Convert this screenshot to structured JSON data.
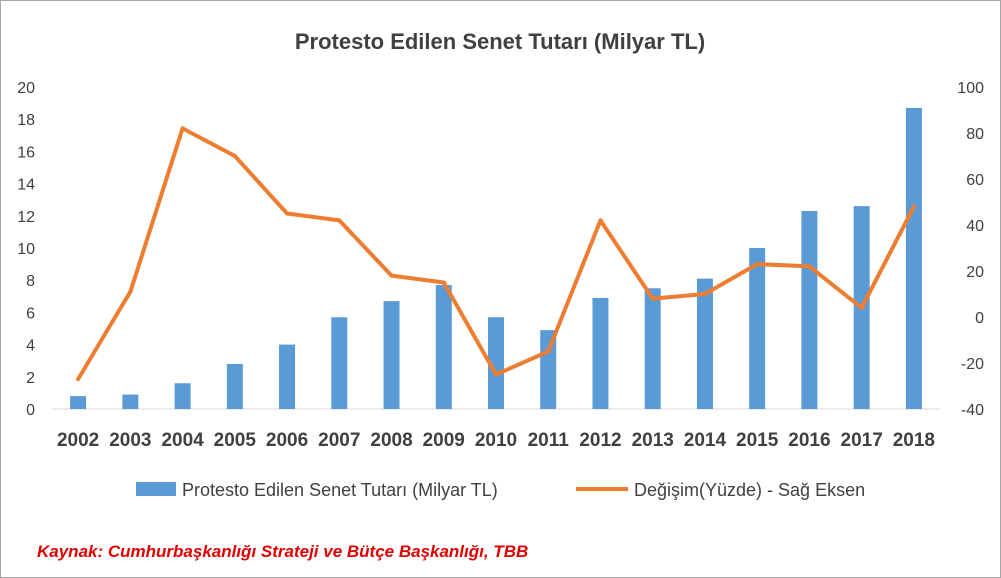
{
  "chart_data": {
    "type": "bar",
    "title": "Protesto Edilen Senet Tutarı (Milyar TL)",
    "categories": [
      "2002",
      "2003",
      "2004",
      "2005",
      "2006",
      "2007",
      "2008",
      "2009",
      "2010",
      "2011",
      "2012",
      "2013",
      "2014",
      "2015",
      "2016",
      "2017",
      "2018"
    ],
    "series": [
      {
        "name": "Protesto Edilen Senet Tutarı (Milyar TL)",
        "type": "bar",
        "axis": "left",
        "color": "#5b9bd5",
        "values": [
          0.8,
          0.9,
          1.6,
          2.8,
          4.0,
          5.7,
          6.7,
          7.7,
          5.7,
          4.9,
          6.9,
          7.5,
          8.1,
          10.0,
          12.3,
          12.6,
          18.7
        ]
      },
      {
        "name": "Değişim(Yüzde) - Sağ Eksen",
        "type": "line",
        "axis": "right",
        "color": "#ed7d31",
        "values": [
          -27,
          11,
          82,
          70,
          45,
          42,
          18,
          15,
          -25,
          -15,
          42,
          8,
          10,
          23,
          22,
          4,
          48
        ]
      }
    ],
    "ylim_left": [
      0,
      20
    ],
    "ylim_right": [
      -40,
      100
    ],
    "yticks_left": [
      "0",
      "2",
      "4",
      "6",
      "8",
      "10",
      "12",
      "14",
      "16",
      "18",
      "20"
    ],
    "yticks_right": [
      "-40",
      "-20",
      "0",
      "20",
      "40",
      "60",
      "80",
      "100"
    ],
    "grid": false,
    "legend_position": "bottom",
    "source": "Kaynak: Cumhurbaşkanlığı Strateji ve Bütçe Başkanlığı, TBB"
  }
}
